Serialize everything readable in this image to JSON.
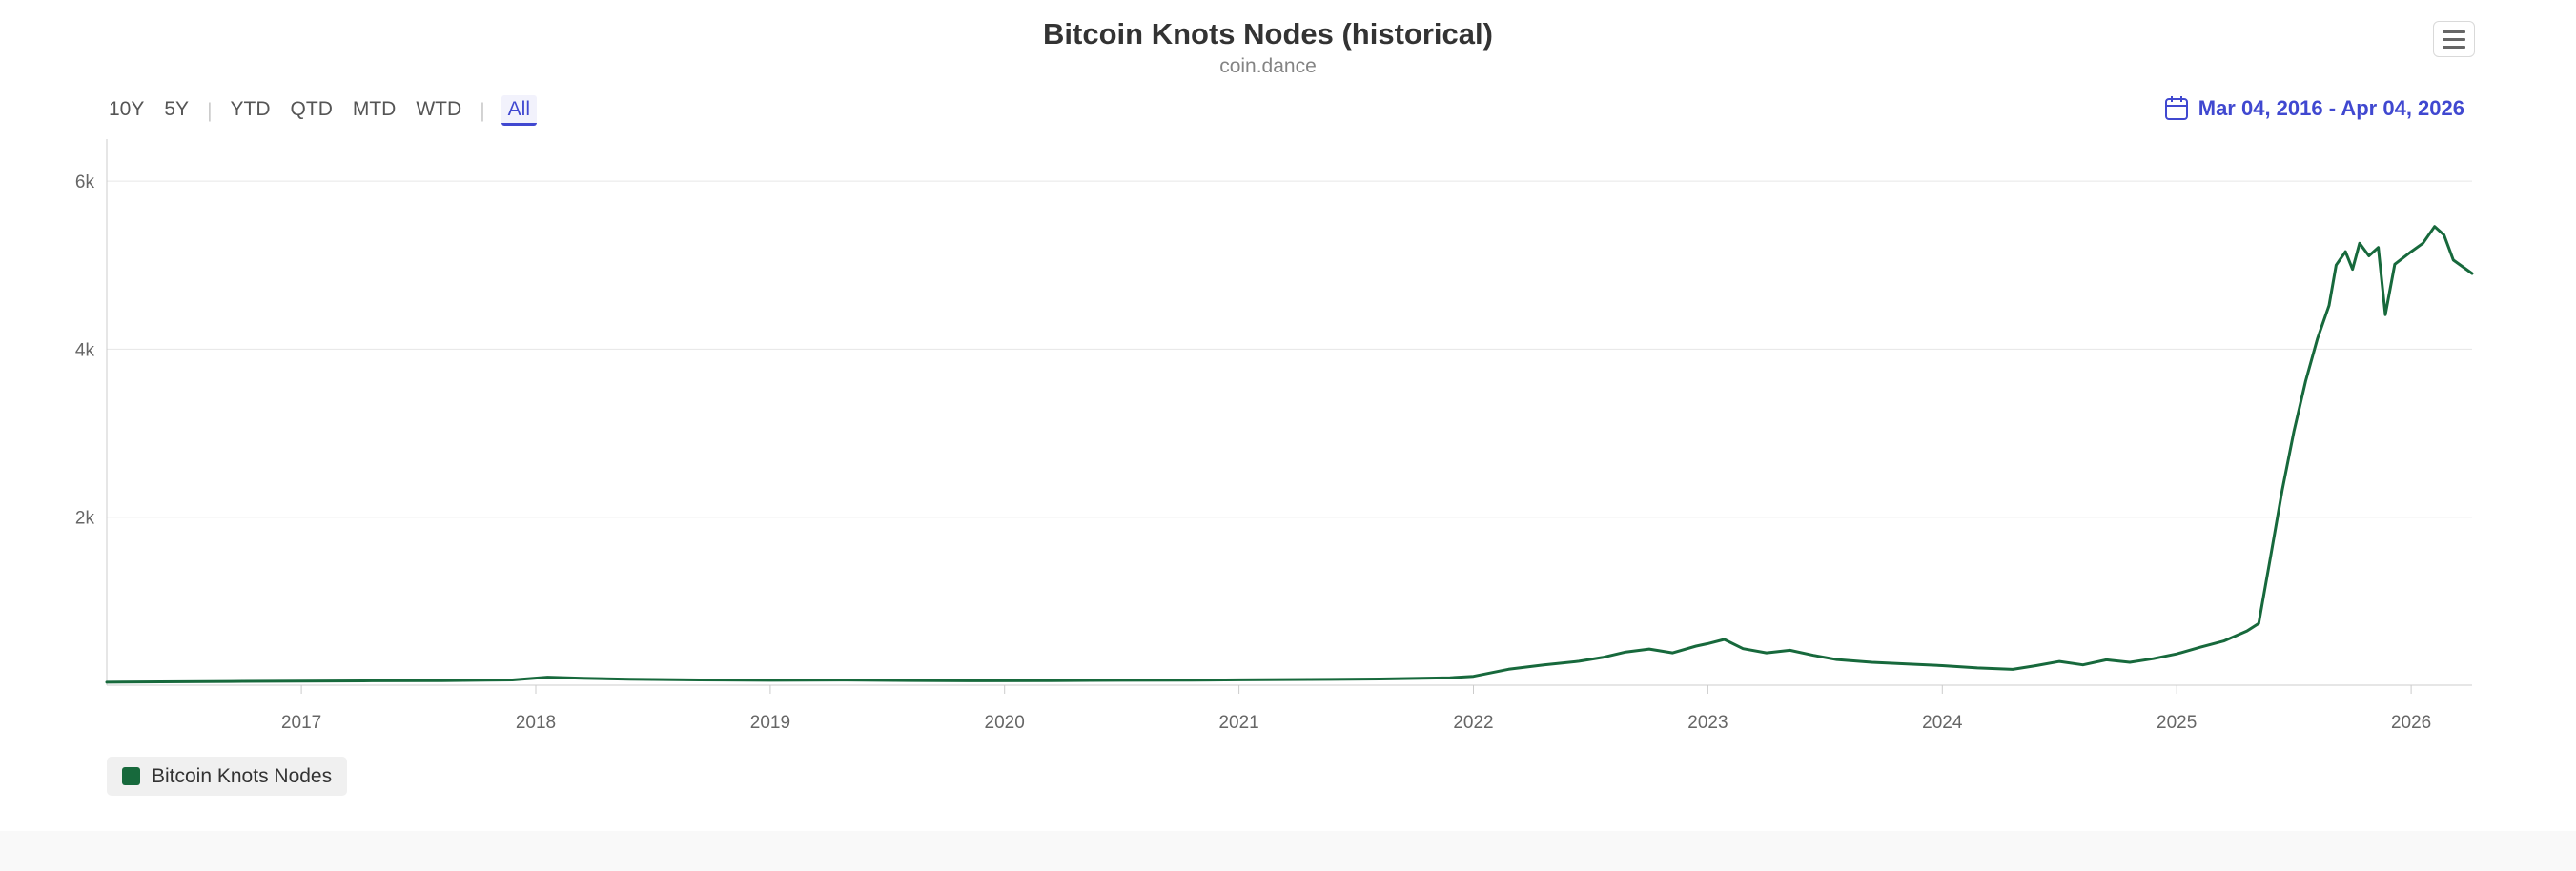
{
  "header": {
    "title": "Bitcoin Knots Nodes (historical)",
    "subtitle": "coin.dance"
  },
  "toolbar": {
    "export_menu_icon": "hamburger-icon"
  },
  "range_selector": {
    "items": [
      {
        "label": "10Y"
      },
      {
        "label": "5Y"
      },
      {
        "divider": true
      },
      {
        "label": "YTD"
      },
      {
        "label": "QTD"
      },
      {
        "label": "MTD"
      },
      {
        "label": "WTD"
      },
      {
        "divider": true
      },
      {
        "label": "All",
        "selected": true
      }
    ]
  },
  "date_range": {
    "icon": "calendar-icon",
    "label": "Mar 04, 2016 - Apr 04, 2026"
  },
  "legend": {
    "items": [
      {
        "label": "Bitcoin Knots Nodes",
        "color": "#17693c"
      }
    ]
  },
  "colors": {
    "accent": "#4048d0",
    "line": "#17693c",
    "grid": "#e6e6e6",
    "axis": "#cccccc",
    "tick_label": "#666666",
    "legend_background": "#f0f0f0"
  },
  "chart_data": {
    "type": "line",
    "title": "Bitcoin Knots Nodes (historical)",
    "subtitle": "coin.dance",
    "xlabel": "",
    "ylabel": "",
    "xlim": [
      2016.17,
      2026.26
    ],
    "ylim": [
      0,
      6500
    ],
    "grid": "horizontal",
    "legend_position": "bottom-left",
    "x_ticks": [
      {
        "value": 2017,
        "label": "2017"
      },
      {
        "value": 2018,
        "label": "2018"
      },
      {
        "value": 2019,
        "label": "2019"
      },
      {
        "value": 2020,
        "label": "2020"
      },
      {
        "value": 2021,
        "label": "2021"
      },
      {
        "value": 2022,
        "label": "2022"
      },
      {
        "value": 2023,
        "label": "2023"
      },
      {
        "value": 2024,
        "label": "2024"
      },
      {
        "value": 2025,
        "label": "2025"
      },
      {
        "value": 2026,
        "label": "2026"
      }
    ],
    "y_ticks": [
      {
        "value": 2000,
        "label": "2k"
      },
      {
        "value": 4000,
        "label": "4k"
      },
      {
        "value": 6000,
        "label": "6k"
      }
    ],
    "series": [
      {
        "name": "Bitcoin Knots Nodes",
        "color": "#17693c",
        "points": [
          [
            2016.17,
            35
          ],
          [
            2016.4,
            40
          ],
          [
            2016.7,
            44
          ],
          [
            2017.0,
            48
          ],
          [
            2017.3,
            52
          ],
          [
            2017.6,
            55
          ],
          [
            2017.9,
            62
          ],
          [
            2018.05,
            95
          ],
          [
            2018.2,
            82
          ],
          [
            2018.4,
            70
          ],
          [
            2018.7,
            62
          ],
          [
            2019.0,
            58
          ],
          [
            2019.3,
            61
          ],
          [
            2019.6,
            56
          ],
          [
            2019.9,
            52
          ],
          [
            2020.2,
            55
          ],
          [
            2020.5,
            58
          ],
          [
            2020.8,
            60
          ],
          [
            2021.0,
            63
          ],
          [
            2021.3,
            68
          ],
          [
            2021.6,
            74
          ],
          [
            2021.9,
            88
          ],
          [
            2022.0,
            105
          ],
          [
            2022.15,
            190
          ],
          [
            2022.3,
            240
          ],
          [
            2022.45,
            285
          ],
          [
            2022.55,
            330
          ],
          [
            2022.65,
            395
          ],
          [
            2022.75,
            430
          ],
          [
            2022.85,
            385
          ],
          [
            2022.95,
            465
          ],
          [
            2023.0,
            495
          ],
          [
            2023.07,
            545
          ],
          [
            2023.15,
            435
          ],
          [
            2023.25,
            385
          ],
          [
            2023.35,
            415
          ],
          [
            2023.45,
            355
          ],
          [
            2023.55,
            305
          ],
          [
            2023.7,
            272
          ],
          [
            2023.85,
            252
          ],
          [
            2024.0,
            232
          ],
          [
            2024.15,
            205
          ],
          [
            2024.3,
            188
          ],
          [
            2024.4,
            232
          ],
          [
            2024.5,
            282
          ],
          [
            2024.6,
            242
          ],
          [
            2024.7,
            302
          ],
          [
            2024.8,
            272
          ],
          [
            2024.9,
            315
          ],
          [
            2025.0,
            372
          ],
          [
            2025.1,
            452
          ],
          [
            2025.2,
            525
          ],
          [
            2025.3,
            645
          ],
          [
            2025.35,
            735
          ],
          [
            2025.4,
            1520
          ],
          [
            2025.45,
            2320
          ],
          [
            2025.5,
            3020
          ],
          [
            2025.55,
            3620
          ],
          [
            2025.6,
            4120
          ],
          [
            2025.65,
            4520
          ],
          [
            2025.68,
            5000
          ],
          [
            2025.72,
            5160
          ],
          [
            2025.75,
            4950
          ],
          [
            2025.78,
            5260
          ],
          [
            2025.82,
            5110
          ],
          [
            2025.86,
            5210
          ],
          [
            2025.89,
            4410
          ],
          [
            2025.93,
            5010
          ],
          [
            2026.0,
            5160
          ],
          [
            2026.05,
            5260
          ],
          [
            2026.1,
            5460
          ],
          [
            2026.14,
            5360
          ],
          [
            2026.18,
            5060
          ],
          [
            2026.26,
            4900
          ]
        ]
      }
    ]
  }
}
